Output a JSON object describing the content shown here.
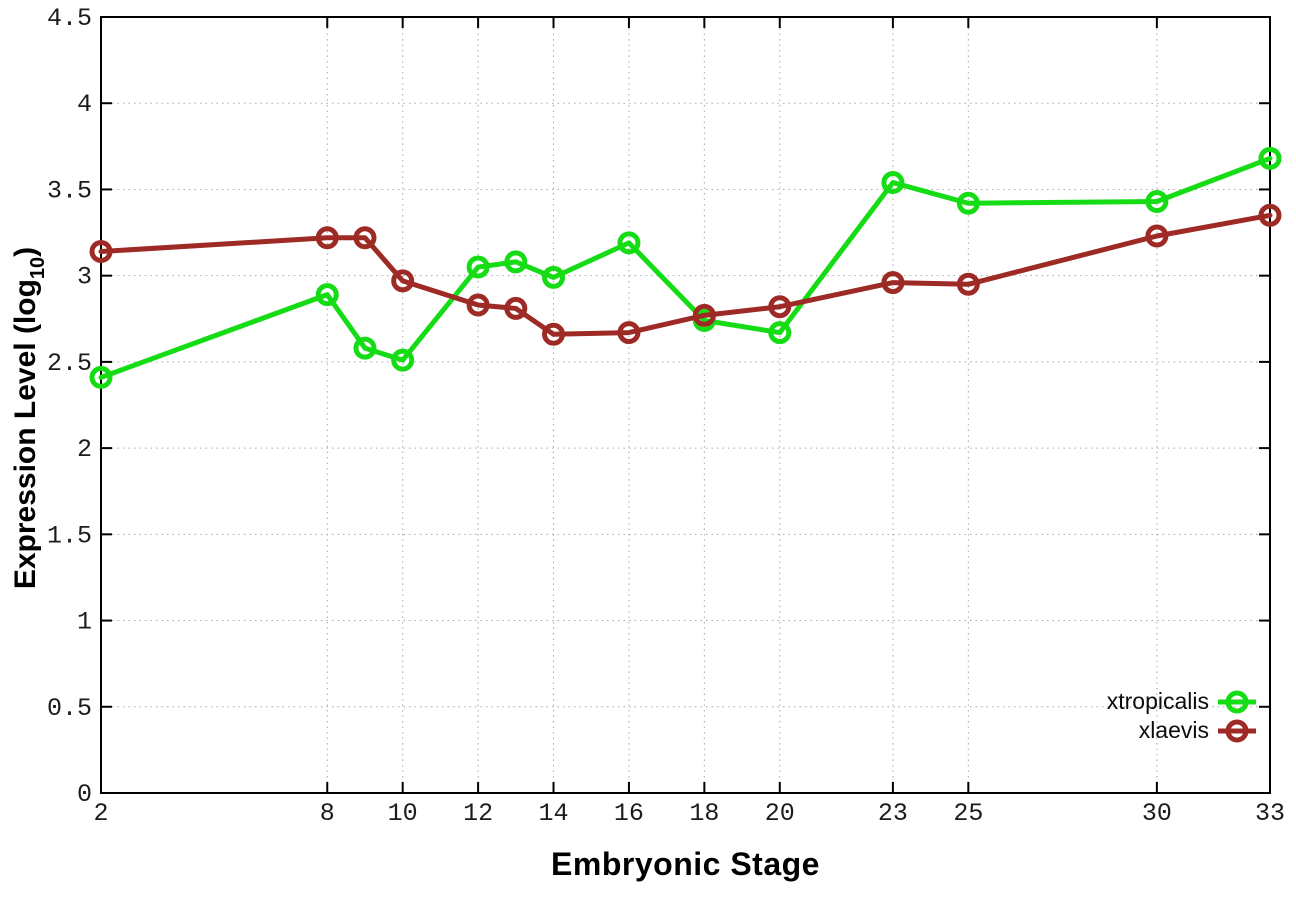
{
  "chart_data": {
    "type": "line",
    "title": "",
    "xlabel": "Embryonic Stage",
    "ylabel": {
      "main": "Expression Level (log",
      "sub": "10",
      "end": ")"
    },
    "xlim": [
      2,
      33
    ],
    "ylim": [
      0,
      4.5
    ],
    "x_ticks": [
      2,
      8,
      10,
      12,
      14,
      16,
      18,
      20,
      23,
      25,
      30,
      33
    ],
    "y_ticks": [
      0,
      0.5,
      1,
      1.5,
      2,
      2.5,
      3,
      3.5,
      4,
      4.5
    ],
    "grid": true,
    "legend_position": "inside-bottom-right",
    "x": [
      2,
      8,
      9,
      10,
      12,
      13,
      14,
      16,
      18,
      20,
      23,
      25,
      30,
      33
    ],
    "series": [
      {
        "name": "xtropicalis",
        "color": "#15dc15",
        "values": [
          2.41,
          2.89,
          2.58,
          2.51,
          3.05,
          3.08,
          2.99,
          3.19,
          2.74,
          2.67,
          3.54,
          3.42,
          3.43,
          3.68
        ]
      },
      {
        "name": "xlaevis",
        "color": "#9e2a25",
        "values": [
          3.14,
          3.22,
          3.22,
          2.97,
          2.83,
          2.81,
          2.66,
          2.67,
          2.77,
          2.82,
          2.96,
          2.95,
          3.23,
          3.35
        ]
      }
    ],
    "colors": {
      "axis": "#000000",
      "grid": "#a8a8a8",
      "tick_text": "#1c1c1c"
    }
  },
  "legend": {
    "items": [
      {
        "label": "xtropicalis"
      },
      {
        "label": "xlaevis"
      }
    ]
  }
}
